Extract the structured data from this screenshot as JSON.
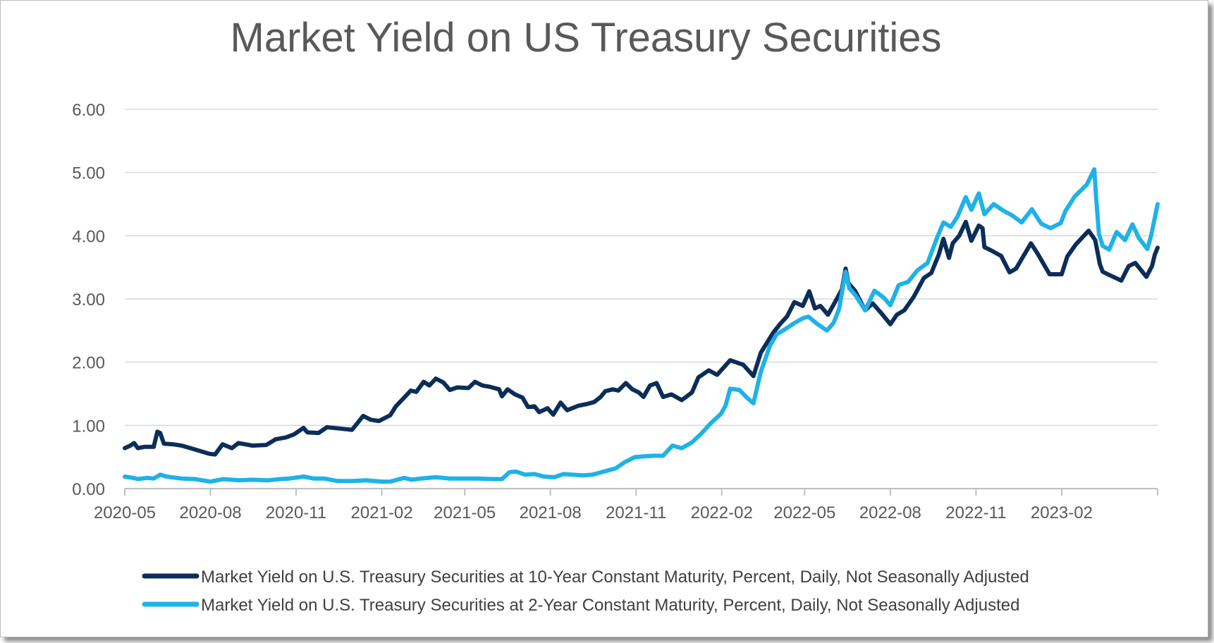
{
  "chart_data": {
    "type": "line",
    "title": "Market Yield on US Treasury Securities",
    "xlabel": "",
    "ylabel": "",
    "ylim": [
      0,
      6
    ],
    "x_ticks": [
      "2020-05",
      "2020-08",
      "2020-11",
      "2021-02",
      "2021-05",
      "2021-08",
      "2021-11",
      "2022-02",
      "2022-05",
      "2022-08",
      "2022-11",
      "2023-02"
    ],
    "y_ticks": [
      "0.00",
      "1.00",
      "2.00",
      "3.00",
      "4.00",
      "5.00",
      "6.00"
    ],
    "grid": true,
    "legend_position": "bottom",
    "x_range": [
      "2020-05-01",
      "2023-05-15"
    ],
    "series": [
      {
        "name": "Market Yield on U.S. Treasury Securities at 10-Year Constant Maturity, Percent, Daily, Not Seasonally Adjusted",
        "color": "#0b2e58",
        "points": [
          [
            "2020-05-01",
            0.64
          ],
          [
            "2020-05-07",
            0.68
          ],
          [
            "2020-05-11",
            0.72
          ],
          [
            "2020-05-15",
            0.64
          ],
          [
            "2020-05-22",
            0.66
          ],
          [
            "2020-06-01",
            0.66
          ],
          [
            "2020-06-05",
            0.9
          ],
          [
            "2020-06-08",
            0.88
          ],
          [
            "2020-06-12",
            0.71
          ],
          [
            "2020-06-22",
            0.7
          ],
          [
            "2020-07-01",
            0.68
          ],
          [
            "2020-07-15",
            0.62
          ],
          [
            "2020-07-31",
            0.55
          ],
          [
            "2020-08-06",
            0.54
          ],
          [
            "2020-08-14",
            0.7
          ],
          [
            "2020-08-24",
            0.64
          ],
          [
            "2020-08-31",
            0.72
          ],
          [
            "2020-09-15",
            0.68
          ],
          [
            "2020-09-30",
            0.69
          ],
          [
            "2020-10-10",
            0.78
          ],
          [
            "2020-10-21",
            0.81
          ],
          [
            "2020-10-30",
            0.86
          ],
          [
            "2020-11-09",
            0.96
          ],
          [
            "2020-11-13",
            0.89
          ],
          [
            "2020-11-25",
            0.88
          ],
          [
            "2020-12-04",
            0.97
          ],
          [
            "2020-12-18",
            0.95
          ],
          [
            "2020-12-31",
            0.93
          ],
          [
            "2021-01-06",
            1.04
          ],
          [
            "2021-01-12",
            1.15
          ],
          [
            "2021-01-20",
            1.09
          ],
          [
            "2021-01-29",
            1.07
          ],
          [
            "2021-02-10",
            1.16
          ],
          [
            "2021-02-16",
            1.3
          ],
          [
            "2021-02-25",
            1.44
          ],
          [
            "2021-03-04",
            1.55
          ],
          [
            "2021-03-10",
            1.53
          ],
          [
            "2021-03-18",
            1.69
          ],
          [
            "2021-03-24",
            1.63
          ],
          [
            "2021-03-31",
            1.74
          ],
          [
            "2021-04-08",
            1.68
          ],
          [
            "2021-04-15",
            1.56
          ],
          [
            "2021-04-23",
            1.6
          ],
          [
            "2021-05-05",
            1.59
          ],
          [
            "2021-05-12",
            1.69
          ],
          [
            "2021-05-20",
            1.63
          ],
          [
            "2021-05-28",
            1.61
          ],
          [
            "2021-06-07",
            1.57
          ],
          [
            "2021-06-10",
            1.46
          ],
          [
            "2021-06-16",
            1.57
          ],
          [
            "2021-06-24",
            1.49
          ],
          [
            "2021-07-02",
            1.44
          ],
          [
            "2021-07-08",
            1.29
          ],
          [
            "2021-07-15",
            1.3
          ],
          [
            "2021-07-20",
            1.21
          ],
          [
            "2021-07-29",
            1.27
          ],
          [
            "2021-08-04",
            1.17
          ],
          [
            "2021-08-12",
            1.36
          ],
          [
            "2021-08-19",
            1.24
          ],
          [
            "2021-08-31",
            1.31
          ],
          [
            "2021-09-10",
            1.34
          ],
          [
            "2021-09-17",
            1.37
          ],
          [
            "2021-09-24",
            1.45
          ],
          [
            "2021-09-29",
            1.54
          ],
          [
            "2021-10-07",
            1.57
          ],
          [
            "2021-10-13",
            1.55
          ],
          [
            "2021-10-21",
            1.67
          ],
          [
            "2021-10-28",
            1.57
          ],
          [
            "2021-11-04",
            1.52
          ],
          [
            "2021-11-09",
            1.45
          ],
          [
            "2021-11-16",
            1.63
          ],
          [
            "2021-11-23",
            1.67
          ],
          [
            "2021-11-30",
            1.45
          ],
          [
            "2021-12-09",
            1.49
          ],
          [
            "2021-12-20",
            1.4
          ],
          [
            "2021-12-31",
            1.52
          ],
          [
            "2022-01-07",
            1.76
          ],
          [
            "2022-01-18",
            1.87
          ],
          [
            "2022-01-27",
            1.8
          ],
          [
            "2022-02-10",
            2.03
          ],
          [
            "2022-02-24",
            1.96
          ],
          [
            "2022-03-07",
            1.78
          ],
          [
            "2022-03-15",
            2.15
          ],
          [
            "2022-03-28",
            2.46
          ],
          [
            "2022-04-05",
            2.61
          ],
          [
            "2022-04-12",
            2.72
          ],
          [
            "2022-04-20",
            2.95
          ],
          [
            "2022-04-29",
            2.89
          ],
          [
            "2022-05-06",
            3.12
          ],
          [
            "2022-05-12",
            2.85
          ],
          [
            "2022-05-18",
            2.89
          ],
          [
            "2022-05-26",
            2.75
          ],
          [
            "2022-06-03",
            2.96
          ],
          [
            "2022-06-10",
            3.15
          ],
          [
            "2022-06-14",
            3.48
          ],
          [
            "2022-06-17",
            3.25
          ],
          [
            "2022-06-24",
            3.13
          ],
          [
            "2022-07-05",
            2.82
          ],
          [
            "2022-07-13",
            2.93
          ],
          [
            "2022-07-22",
            2.78
          ],
          [
            "2022-08-01",
            2.6
          ],
          [
            "2022-08-08",
            2.75
          ],
          [
            "2022-08-16",
            2.82
          ],
          [
            "2022-08-26",
            3.03
          ],
          [
            "2022-09-06",
            3.33
          ],
          [
            "2022-09-14",
            3.41
          ],
          [
            "2022-09-22",
            3.7
          ],
          [
            "2022-09-27",
            3.95
          ],
          [
            "2022-10-03",
            3.65
          ],
          [
            "2022-10-07",
            3.88
          ],
          [
            "2022-10-14",
            4.0
          ],
          [
            "2022-10-21",
            4.22
          ],
          [
            "2022-10-27",
            3.92
          ],
          [
            "2022-11-04",
            4.16
          ],
          [
            "2022-11-08",
            4.12
          ],
          [
            "2022-11-10",
            3.82
          ],
          [
            "2022-11-17",
            3.77
          ],
          [
            "2022-11-28",
            3.68
          ],
          [
            "2022-12-07",
            3.42
          ],
          [
            "2022-12-14",
            3.48
          ],
          [
            "2022-12-22",
            3.68
          ],
          [
            "2022-12-30",
            3.88
          ],
          [
            "2023-01-06",
            3.72
          ],
          [
            "2023-01-19",
            3.39
          ],
          [
            "2023-02-01",
            3.39
          ],
          [
            "2023-02-07",
            3.67
          ],
          [
            "2023-02-16",
            3.86
          ],
          [
            "2023-03-02",
            4.08
          ],
          [
            "2023-03-09",
            3.93
          ],
          [
            "2023-03-14",
            3.55
          ],
          [
            "2023-03-17",
            3.43
          ],
          [
            "2023-03-24",
            3.38
          ],
          [
            "2023-04-06",
            3.29
          ],
          [
            "2023-04-14",
            3.52
          ],
          [
            "2023-04-21",
            3.57
          ],
          [
            "2023-05-03",
            3.35
          ],
          [
            "2023-05-09",
            3.52
          ],
          [
            "2023-05-12",
            3.7
          ],
          [
            "2023-05-15",
            3.81
          ]
        ]
      },
      {
        "name": "Market Yield on U.S. Treasury Securities at 2-Year Constant Maturity, Percent, Daily, Not Seasonally Adjusted",
        "color": "#1eb2e8",
        "points": [
          [
            "2020-05-01",
            0.19
          ],
          [
            "2020-05-10",
            0.17
          ],
          [
            "2020-05-15",
            0.15
          ],
          [
            "2020-05-25",
            0.17
          ],
          [
            "2020-06-01",
            0.16
          ],
          [
            "2020-06-08",
            0.22
          ],
          [
            "2020-06-15",
            0.19
          ],
          [
            "2020-07-01",
            0.16
          ],
          [
            "2020-07-15",
            0.15
          ],
          [
            "2020-08-01",
            0.11
          ],
          [
            "2020-08-15",
            0.15
          ],
          [
            "2020-09-01",
            0.13
          ],
          [
            "2020-09-15",
            0.14
          ],
          [
            "2020-10-01",
            0.13
          ],
          [
            "2020-10-15",
            0.15
          ],
          [
            "2020-10-25",
            0.16
          ],
          [
            "2020-11-09",
            0.19
          ],
          [
            "2020-11-20",
            0.16
          ],
          [
            "2020-12-01",
            0.16
          ],
          [
            "2020-12-15",
            0.12
          ],
          [
            "2021-01-01",
            0.12
          ],
          [
            "2021-01-15",
            0.13
          ],
          [
            "2021-02-01",
            0.11
          ],
          [
            "2021-02-10",
            0.11
          ],
          [
            "2021-02-25",
            0.17
          ],
          [
            "2021-03-05",
            0.14
          ],
          [
            "2021-03-15",
            0.16
          ],
          [
            "2021-03-31",
            0.18
          ],
          [
            "2021-04-15",
            0.16
          ],
          [
            "2021-04-30",
            0.16
          ],
          [
            "2021-05-15",
            0.16
          ],
          [
            "2021-05-31",
            0.15
          ],
          [
            "2021-06-10",
            0.15
          ],
          [
            "2021-06-18",
            0.26
          ],
          [
            "2021-06-25",
            0.27
          ],
          [
            "2021-07-05",
            0.22
          ],
          [
            "2021-07-15",
            0.23
          ],
          [
            "2021-07-25",
            0.19
          ],
          [
            "2021-08-05",
            0.18
          ],
          [
            "2021-08-15",
            0.23
          ],
          [
            "2021-08-25",
            0.22
          ],
          [
            "2021-09-05",
            0.21
          ],
          [
            "2021-09-15",
            0.22
          ],
          [
            "2021-09-30",
            0.28
          ],
          [
            "2021-10-10",
            0.32
          ],
          [
            "2021-10-20",
            0.42
          ],
          [
            "2021-10-31",
            0.5
          ],
          [
            "2021-11-10",
            0.51
          ],
          [
            "2021-11-20",
            0.52
          ],
          [
            "2021-11-30",
            0.52
          ],
          [
            "2021-12-10",
            0.68
          ],
          [
            "2021-12-20",
            0.64
          ],
          [
            "2021-12-31",
            0.73
          ],
          [
            "2022-01-10",
            0.87
          ],
          [
            "2022-01-20",
            1.03
          ],
          [
            "2022-01-31",
            1.18
          ],
          [
            "2022-02-05",
            1.31
          ],
          [
            "2022-02-10",
            1.58
          ],
          [
            "2022-02-20",
            1.56
          ],
          [
            "2022-02-28",
            1.44
          ],
          [
            "2022-03-07",
            1.35
          ],
          [
            "2022-03-15",
            1.85
          ],
          [
            "2022-03-25",
            2.27
          ],
          [
            "2022-04-01",
            2.44
          ],
          [
            "2022-04-10",
            2.52
          ],
          [
            "2022-04-20",
            2.62
          ],
          [
            "2022-04-30",
            2.7
          ],
          [
            "2022-05-05",
            2.72
          ],
          [
            "2022-05-15",
            2.6
          ],
          [
            "2022-05-25",
            2.5
          ],
          [
            "2022-06-01",
            2.62
          ],
          [
            "2022-06-07",
            2.84
          ],
          [
            "2022-06-14",
            3.43
          ],
          [
            "2022-06-18",
            3.17
          ],
          [
            "2022-06-25",
            3.05
          ],
          [
            "2022-07-05",
            2.82
          ],
          [
            "2022-07-15",
            3.13
          ],
          [
            "2022-07-25",
            3.02
          ],
          [
            "2022-08-01",
            2.9
          ],
          [
            "2022-08-10",
            3.22
          ],
          [
            "2022-08-20",
            3.27
          ],
          [
            "2022-08-30",
            3.45
          ],
          [
            "2022-09-10",
            3.57
          ],
          [
            "2022-09-20",
            3.96
          ],
          [
            "2022-09-27",
            4.21
          ],
          [
            "2022-10-05",
            4.14
          ],
          [
            "2022-10-12",
            4.3
          ],
          [
            "2022-10-21",
            4.61
          ],
          [
            "2022-10-27",
            4.41
          ],
          [
            "2022-11-04",
            4.67
          ],
          [
            "2022-11-10",
            4.34
          ],
          [
            "2022-11-20",
            4.5
          ],
          [
            "2022-11-30",
            4.4
          ],
          [
            "2022-12-10",
            4.32
          ],
          [
            "2022-12-20",
            4.21
          ],
          [
            "2022-12-31",
            4.42
          ],
          [
            "2023-01-10",
            4.19
          ],
          [
            "2023-01-20",
            4.12
          ],
          [
            "2023-01-31",
            4.2
          ],
          [
            "2023-02-05",
            4.39
          ],
          [
            "2023-02-15",
            4.62
          ],
          [
            "2023-02-28",
            4.81
          ],
          [
            "2023-03-08",
            5.05
          ],
          [
            "2023-03-10",
            4.6
          ],
          [
            "2023-03-13",
            4.03
          ],
          [
            "2023-03-17",
            3.84
          ],
          [
            "2023-03-24",
            3.78
          ],
          [
            "2023-04-01",
            4.06
          ],
          [
            "2023-04-10",
            3.93
          ],
          [
            "2023-04-18",
            4.18
          ],
          [
            "2023-04-25",
            3.96
          ],
          [
            "2023-05-04",
            3.79
          ],
          [
            "2023-05-08",
            4.0
          ],
          [
            "2023-05-12",
            4.28
          ],
          [
            "2023-05-15",
            4.5
          ]
        ]
      }
    ]
  }
}
